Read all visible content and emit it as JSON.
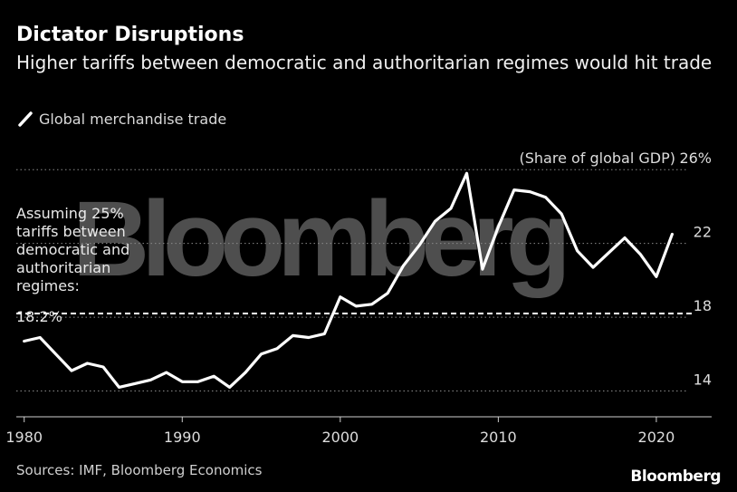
{
  "header": {
    "title": "Dictator Disruptions",
    "subtitle": "Higher tariffs between democratic and authoritarian regimes would hit trade"
  },
  "legend": {
    "label": "Global merchandise trade"
  },
  "footer": {
    "source": "Sources: IMF, Bloomberg Economics",
    "brand": "Bloomberg"
  },
  "watermark": "Bloomberg",
  "chart_data": {
    "type": "line",
    "title": "Dictator Disruptions",
    "ylabel": "(Share of global GDP)",
    "xlabel": "",
    "xlim": [
      1979.5,
      2023.5
    ],
    "ylim": [
      12.6,
      26.6
    ],
    "x_ticks": [
      1980,
      1990,
      2000,
      2010,
      2020
    ],
    "y_ticks": [
      {
        "value": 26,
        "label": "26%"
      },
      {
        "value": 22,
        "label": "22"
      },
      {
        "value": 18,
        "label": "18"
      },
      {
        "value": 14,
        "label": "14"
      }
    ],
    "series": [
      {
        "name": "Global merchandise trade",
        "color": "#ffffff",
        "x": [
          1980,
          1981,
          1982,
          1983,
          1984,
          1985,
          1986,
          1987,
          1988,
          1989,
          1990,
          1991,
          1992,
          1993,
          1994,
          1995,
          1996,
          1997,
          1998,
          1999,
          2000,
          2001,
          2002,
          2003,
          2004,
          2005,
          2006,
          2007,
          2008,
          2009,
          2010,
          2011,
          2012,
          2013,
          2014,
          2015,
          2016,
          2017,
          2018,
          2019,
          2020,
          2021
        ],
        "values": [
          16.7,
          16.9,
          16.0,
          15.1,
          15.5,
          15.3,
          14.2,
          14.4,
          14.6,
          15.0,
          14.5,
          14.5,
          14.8,
          14.2,
          15.0,
          16.0,
          16.3,
          17.0,
          16.9,
          17.1,
          19.1,
          18.6,
          18.7,
          19.3,
          20.8,
          21.9,
          23.2,
          23.9,
          25.8,
          20.6,
          22.9,
          24.9,
          24.8,
          24.5,
          23.6,
          21.6,
          20.7,
          21.5,
          22.3,
          21.4,
          20.2,
          22.5
        ]
      }
    ],
    "annotation": {
      "text": "Assuming 25% tariffs between democratic and authoritarian regimes:",
      "value_label": "18.2%",
      "value": 18.2,
      "style": "dashed"
    },
    "gridlines": "horizontal-dotted"
  }
}
